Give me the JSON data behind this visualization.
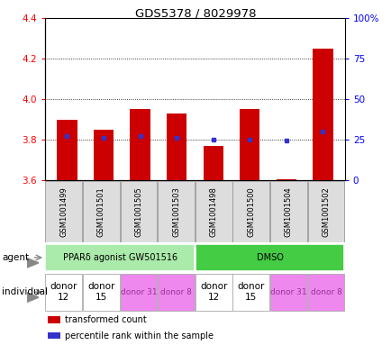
{
  "title": "GDS5378 / 8029978",
  "samples": [
    "GSM1001499",
    "GSM1001501",
    "GSM1001505",
    "GSM1001503",
    "GSM1001498",
    "GSM1001500",
    "GSM1001504",
    "GSM1001502"
  ],
  "bar_bottoms": [
    3.6,
    3.6,
    3.6,
    3.6,
    3.6,
    3.6,
    3.6,
    3.6
  ],
  "bar_tops": [
    3.9,
    3.85,
    3.95,
    3.93,
    3.77,
    3.95,
    3.607,
    4.25
  ],
  "dot_y": [
    3.82,
    3.81,
    3.82,
    3.81,
    3.8,
    3.8,
    3.796,
    3.84
  ],
  "ylim": [
    3.6,
    4.4
  ],
  "yticks_left": [
    3.6,
    3.8,
    4.0,
    4.2,
    4.4
  ],
  "yticks_right_labels": [
    "0",
    "25",
    "50",
    "75",
    "100%"
  ],
  "bar_color": "#cc0000",
  "dot_color": "#3333cc",
  "agent_groups": [
    {
      "label": "PPARδ agonist GW501516",
      "start": 0,
      "end": 4,
      "color": "#aaeaaa"
    },
    {
      "label": "DMSO",
      "start": 4,
      "end": 8,
      "color": "#44cc44"
    }
  ],
  "individual_groups": [
    {
      "label": "donor\n12",
      "start": 0,
      "end": 1,
      "color": "#ffffff",
      "fontsize": 7.5,
      "text_color": "#000000"
    },
    {
      "label": "donor\n15",
      "start": 1,
      "end": 2,
      "color": "#ffffff",
      "fontsize": 7.5,
      "text_color": "#000000"
    },
    {
      "label": "donor 31",
      "start": 2,
      "end": 3,
      "color": "#ee88ee",
      "fontsize": 6.5,
      "text_color": "#993399"
    },
    {
      "label": "donor 8",
      "start": 3,
      "end": 4,
      "color": "#ee88ee",
      "fontsize": 6.5,
      "text_color": "#993399"
    },
    {
      "label": "donor\n12",
      "start": 4,
      "end": 5,
      "color": "#ffffff",
      "fontsize": 7.5,
      "text_color": "#000000"
    },
    {
      "label": "donor\n15",
      "start": 5,
      "end": 6,
      "color": "#ffffff",
      "fontsize": 7.5,
      "text_color": "#000000"
    },
    {
      "label": "donor 31",
      "start": 6,
      "end": 7,
      "color": "#ee88ee",
      "fontsize": 6.5,
      "text_color": "#993399"
    },
    {
      "label": "donor 8",
      "start": 7,
      "end": 8,
      "color": "#ee88ee",
      "fontsize": 6.5,
      "text_color": "#993399"
    }
  ],
  "legend_items": [
    {
      "color": "#cc0000",
      "label": "transformed count"
    },
    {
      "color": "#3333cc",
      "label": "percentile rank within the sample"
    }
  ],
  "sample_box_color": "#dddddd",
  "sample_box_edge": "#999999"
}
